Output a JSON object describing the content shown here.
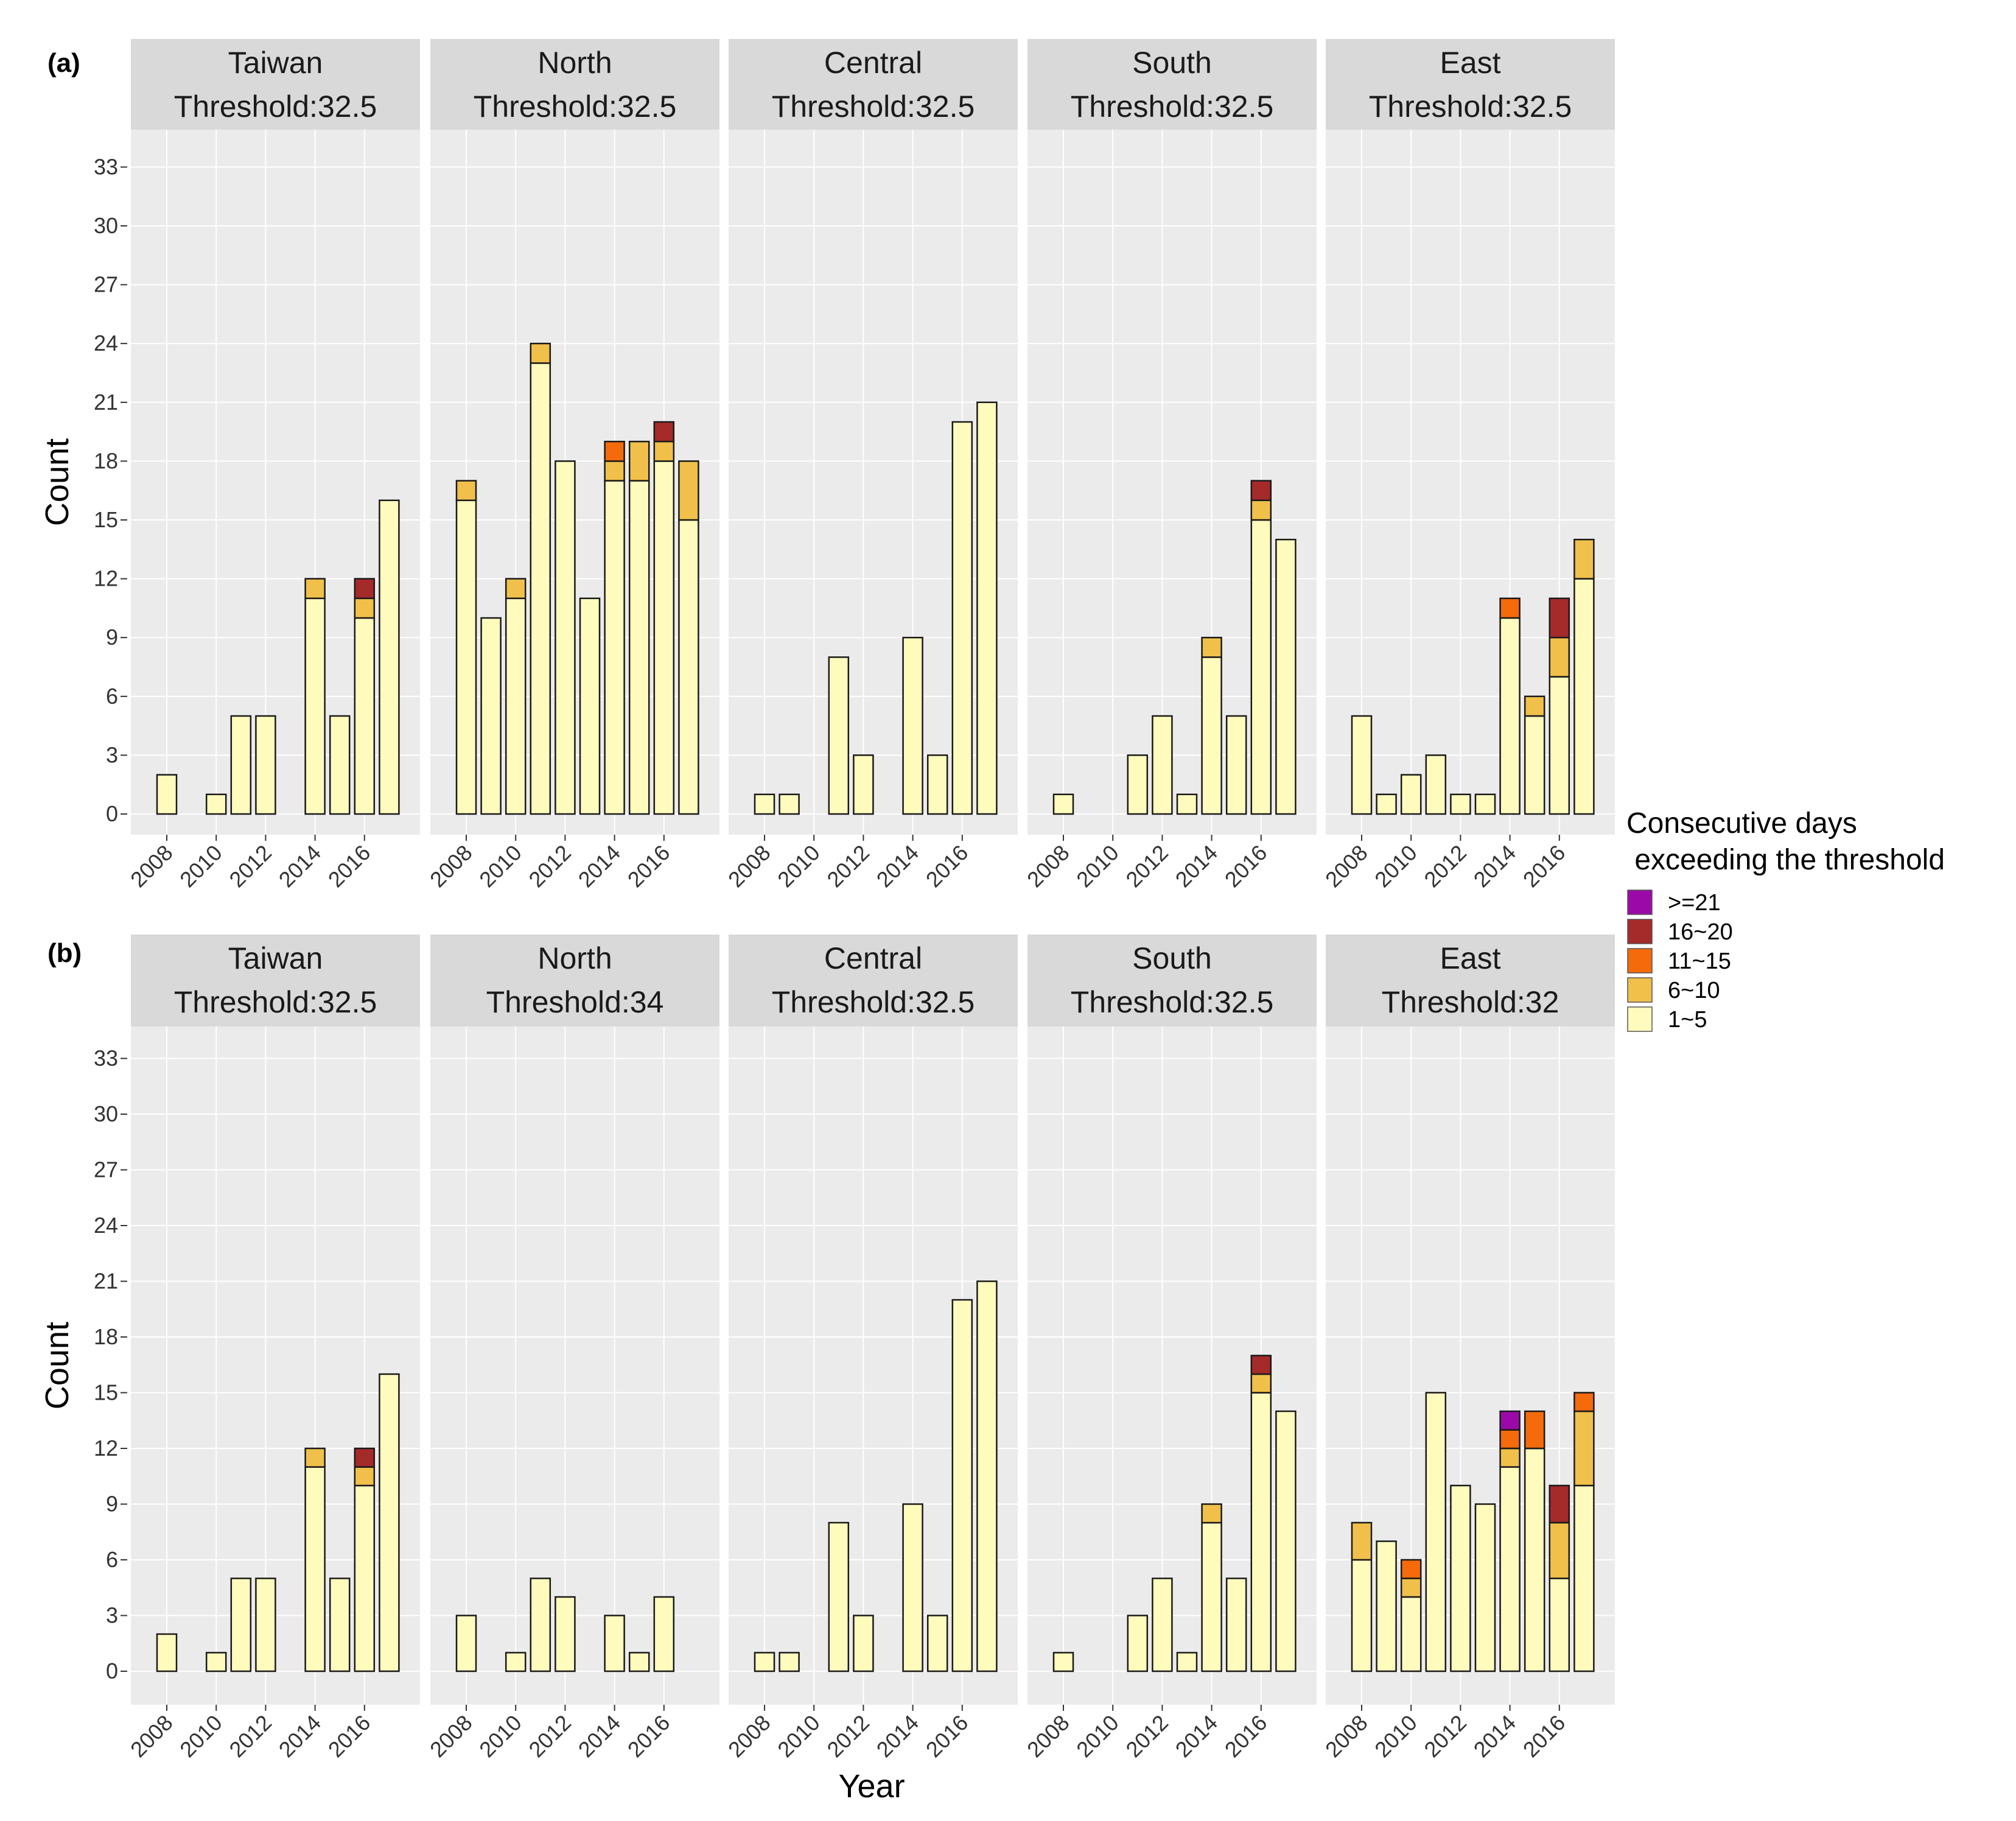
{
  "chart_data": [
    {
      "type": "bar",
      "stacked": true,
      "tag": "(a)",
      "xlabel": "",
      "ylabel": "Count",
      "ylim": [
        0,
        34.5
      ],
      "yticks": [
        0,
        3,
        6,
        9,
        12,
        15,
        18,
        21,
        24,
        27,
        30,
        33
      ],
      "xticks": [
        "2008",
        "2010",
        "2012",
        "2014",
        "2016"
      ],
      "x": [
        2008,
        2009,
        2010,
        2011,
        2012,
        2013,
        2014,
        2015,
        2016,
        2017
      ],
      "grid": true,
      "panels": [
        {
          "region": "Taiwan",
          "threshold": "Threshold:32.5",
          "stacks": [
            [
              2,
              0,
              0,
              0,
              0
            ],
            [
              0,
              0,
              0,
              0,
              0
            ],
            [
              1,
              0,
              0,
              0,
              0
            ],
            [
              5,
              0,
              0,
              0,
              0
            ],
            [
              5,
              0,
              0,
              0,
              0
            ],
            [
              0,
              0,
              0,
              0,
              0
            ],
            [
              11,
              1,
              0,
              0,
              0
            ],
            [
              5,
              0,
              0,
              0,
              0
            ],
            [
              10,
              1,
              0,
              1,
              0
            ],
            [
              16,
              0,
              0,
              0,
              0
            ]
          ]
        },
        {
          "region": "North",
          "threshold": "Threshold:32.5",
          "stacks": [
            [
              16,
              1,
              0,
              0,
              0
            ],
            [
              10,
              0,
              0,
              0,
              0
            ],
            [
              11,
              1,
              0,
              0,
              0
            ],
            [
              23,
              1,
              0,
              0,
              0
            ],
            [
              18,
              0,
              0,
              0,
              0
            ],
            [
              11,
              0,
              0,
              0,
              0
            ],
            [
              17,
              1,
              1,
              0,
              0
            ],
            [
              17,
              2,
              0,
              0,
              0
            ],
            [
              18,
              1,
              0,
              1,
              0
            ],
            [
              15,
              3,
              0,
              0,
              0
            ]
          ]
        },
        {
          "region": "Central",
          "threshold": "Threshold:32.5",
          "stacks": [
            [
              1,
              0,
              0,
              0,
              0
            ],
            [
              1,
              0,
              0,
              0,
              0
            ],
            [
              0,
              0,
              0,
              0,
              0
            ],
            [
              8,
              0,
              0,
              0,
              0
            ],
            [
              3,
              0,
              0,
              0,
              0
            ],
            [
              0,
              0,
              0,
              0,
              0
            ],
            [
              9,
              0,
              0,
              0,
              0
            ],
            [
              3,
              0,
              0,
              0,
              0
            ],
            [
              20,
              0,
              0,
              0,
              0
            ],
            [
              21,
              0,
              0,
              0,
              0
            ]
          ]
        },
        {
          "region": "South",
          "threshold": "Threshold:32.5",
          "stacks": [
            [
              1,
              0,
              0,
              0,
              0
            ],
            [
              0,
              0,
              0,
              0,
              0
            ],
            [
              0,
              0,
              0,
              0,
              0
            ],
            [
              3,
              0,
              0,
              0,
              0
            ],
            [
              5,
              0,
              0,
              0,
              0
            ],
            [
              1,
              0,
              0,
              0,
              0
            ],
            [
              8,
              1,
              0,
              0,
              0
            ],
            [
              5,
              0,
              0,
              0,
              0
            ],
            [
              15,
              1,
              0,
              1,
              0
            ],
            [
              14,
              0,
              0,
              0,
              0
            ]
          ]
        },
        {
          "region": "East",
          "threshold": "Threshold:32.5",
          "stacks": [
            [
              5,
              0,
              0,
              0,
              0
            ],
            [
              1,
              0,
              0,
              0,
              0
            ],
            [
              2,
              0,
              0,
              0,
              0
            ],
            [
              3,
              0,
              0,
              0,
              0
            ],
            [
              1,
              0,
              0,
              0,
              0
            ],
            [
              1,
              0,
              0,
              0,
              0
            ],
            [
              10,
              0,
              1,
              0,
              0
            ],
            [
              5,
              1,
              0,
              0,
              0
            ],
            [
              7,
              2,
              0,
              2,
              0
            ],
            [
              12,
              2,
              0,
              0,
              0
            ]
          ]
        }
      ]
    },
    {
      "type": "bar",
      "stacked": true,
      "tag": "(b)",
      "xlabel": "Year",
      "ylabel": "Count",
      "ylim": [
        0,
        34.5
      ],
      "yticks": [
        0,
        3,
        6,
        9,
        12,
        15,
        18,
        21,
        24,
        27,
        30,
        33
      ],
      "xticks": [
        "2008",
        "2010",
        "2012",
        "2014",
        "2016"
      ],
      "x": [
        2008,
        2009,
        2010,
        2011,
        2012,
        2013,
        2014,
        2015,
        2016,
        2017
      ],
      "grid": true,
      "panels": [
        {
          "region": "Taiwan",
          "threshold": "Threshold:32.5",
          "stacks": [
            [
              2,
              0,
              0,
              0,
              0
            ],
            [
              0,
              0,
              0,
              0,
              0
            ],
            [
              1,
              0,
              0,
              0,
              0
            ],
            [
              5,
              0,
              0,
              0,
              0
            ],
            [
              5,
              0,
              0,
              0,
              0
            ],
            [
              0,
              0,
              0,
              0,
              0
            ],
            [
              11,
              1,
              0,
              0,
              0
            ],
            [
              5,
              0,
              0,
              0,
              0
            ],
            [
              10,
              1,
              0,
              1,
              0
            ],
            [
              16,
              0,
              0,
              0,
              0
            ]
          ]
        },
        {
          "region": "North",
          "threshold": "Threshold:34",
          "stacks": [
            [
              3,
              0,
              0,
              0,
              0
            ],
            [
              0,
              0,
              0,
              0,
              0
            ],
            [
              1,
              0,
              0,
              0,
              0
            ],
            [
              5,
              0,
              0,
              0,
              0
            ],
            [
              4,
              0,
              0,
              0,
              0
            ],
            [
              0,
              0,
              0,
              0,
              0
            ],
            [
              3,
              0,
              0,
              0,
              0
            ],
            [
              1,
              0,
              0,
              0,
              0
            ],
            [
              4,
              0,
              0,
              0,
              0
            ],
            [
              0,
              0,
              0,
              0,
              0
            ]
          ]
        },
        {
          "region": "Central",
          "threshold": "Threshold:32.5",
          "stacks": [
            [
              1,
              0,
              0,
              0,
              0
            ],
            [
              1,
              0,
              0,
              0,
              0
            ],
            [
              0,
              0,
              0,
              0,
              0
            ],
            [
              8,
              0,
              0,
              0,
              0
            ],
            [
              3,
              0,
              0,
              0,
              0
            ],
            [
              0,
              0,
              0,
              0,
              0
            ],
            [
              9,
              0,
              0,
              0,
              0
            ],
            [
              3,
              0,
              0,
              0,
              0
            ],
            [
              20,
              0,
              0,
              0,
              0
            ],
            [
              21,
              0,
              0,
              0,
              0
            ]
          ]
        },
        {
          "region": "South",
          "threshold": "Threshold:32.5",
          "stacks": [
            [
              1,
              0,
              0,
              0,
              0
            ],
            [
              0,
              0,
              0,
              0,
              0
            ],
            [
              0,
              0,
              0,
              0,
              0
            ],
            [
              3,
              0,
              0,
              0,
              0
            ],
            [
              5,
              0,
              0,
              0,
              0
            ],
            [
              1,
              0,
              0,
              0,
              0
            ],
            [
              8,
              1,
              0,
              0,
              0
            ],
            [
              5,
              0,
              0,
              0,
              0
            ],
            [
              15,
              1,
              0,
              1,
              0
            ],
            [
              14,
              0,
              0,
              0,
              0
            ]
          ]
        },
        {
          "region": "East",
          "threshold": "Threshold:32",
          "stacks": [
            [
              6,
              2,
              0,
              0,
              0
            ],
            [
              7,
              0,
              0,
              0,
              0
            ],
            [
              4,
              1,
              1,
              0,
              0
            ],
            [
              15,
              0,
              0,
              0,
              0
            ],
            [
              10,
              0,
              0,
              0,
              0
            ],
            [
              9,
              0,
              0,
              0,
              0
            ],
            [
              11,
              1,
              1,
              0,
              1
            ],
            [
              12,
              0,
              2,
              0,
              0
            ],
            [
              5,
              3,
              0,
              2,
              0
            ],
            [
              10,
              4,
              1,
              0,
              0
            ]
          ]
        }
      ]
    }
  ],
  "legend": {
    "title_line1": "Consecutive days",
    "title_line2": " exceeding the threshold",
    "placement": "right",
    "items": [
      {
        "label": ">=21",
        "color": "#9b0aa8"
      },
      {
        "label": "16~20",
        "color": "#a52a2a"
      },
      {
        "label": "11~15",
        "color": "#f56a0a"
      },
      {
        "label": "6~10",
        "color": "#f0c04a"
      },
      {
        "label": "1~5",
        "color": "#fffbbd"
      }
    ]
  },
  "category_colors": [
    "#fffbbd",
    "#f0c04a",
    "#f56a0a",
    "#a52a2a",
    "#9b0aa8"
  ],
  "style": {
    "panel_bg": "#ebebeb",
    "strip_bg": "#d9d9d9",
    "grid_color": "#ffffff",
    "bar_outline": "#1a1a1a"
  }
}
